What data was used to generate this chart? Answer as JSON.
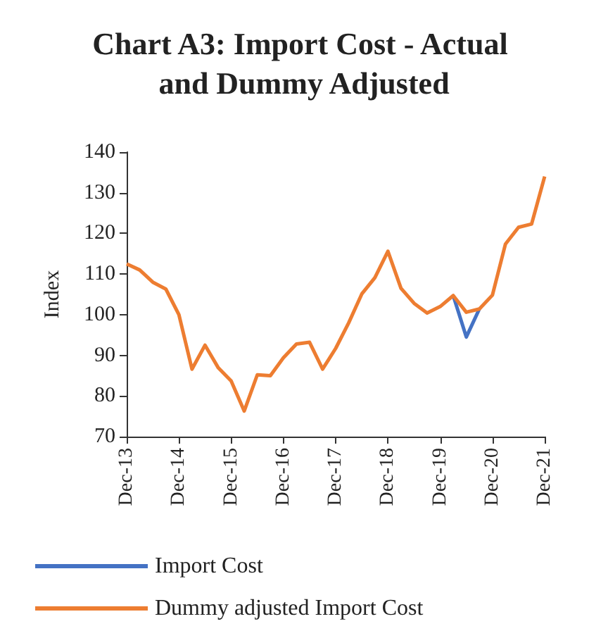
{
  "chart_data": {
    "type": "line",
    "title": "Chart A3: Import Cost - Actual and Dummy Adjusted",
    "ylabel": "Index",
    "categories": [
      "Dec-13",
      null,
      null,
      null,
      "Dec-14",
      null,
      null,
      null,
      "Dec-15",
      null,
      null,
      null,
      "Dec-16",
      null,
      null,
      null,
      "Dec-17",
      null,
      null,
      null,
      "Dec-18",
      null,
      null,
      null,
      "Dec-19",
      null,
      null,
      null,
      "Dec-20",
      null,
      null,
      null,
      "Dec-21"
    ],
    "series": [
      {
        "name": "Import Cost",
        "color": "#4472c4",
        "values": [
          null,
          null,
          null,
          null,
          null,
          null,
          null,
          null,
          null,
          null,
          null,
          null,
          null,
          null,
          null,
          null,
          null,
          null,
          null,
          null,
          null,
          null,
          null,
          null,
          null,
          104.7,
          94.5,
          101.4,
          null,
          null,
          null,
          null,
          null
        ]
      },
      {
        "name": "Dummy adjusted Import Cost",
        "color": "#ed7d31",
        "values": [
          112.5,
          111,
          108,
          106.3,
          100,
          86.6,
          92.5,
          87,
          83.7,
          76.3,
          85.2,
          85,
          89.4,
          92.8,
          93.2,
          86.6,
          91.7,
          98,
          105.1,
          109.1,
          115.6,
          106.5,
          102.8,
          100.4,
          102,
          104.7,
          100.6,
          101.4,
          104.8,
          117.4,
          121.5,
          122.3,
          134
        ]
      }
    ],
    "ylim": [
      70,
      140
    ],
    "yticks": [
      70,
      80,
      90,
      100,
      110,
      120,
      130,
      140
    ],
    "grid": false,
    "legend": "bottom",
    "marker": "none",
    "line_style": "solid"
  }
}
